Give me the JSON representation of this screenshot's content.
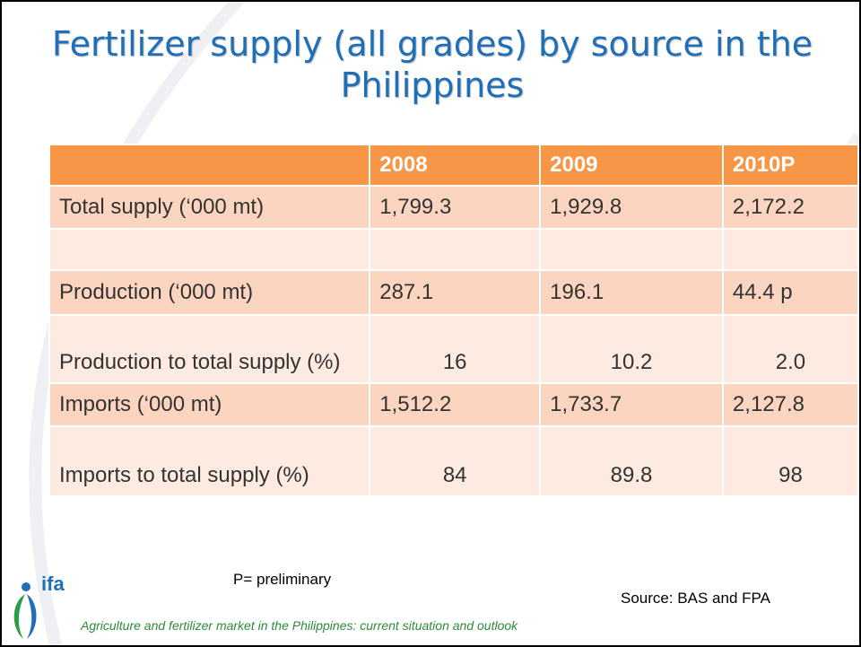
{
  "title": "Fertilizer supply (all grades) by source in the Philippines",
  "table": {
    "header": [
      "2008",
      "2009",
      "2010P"
    ],
    "rows": [
      [
        "Total supply (‘000 mt)",
        "1,799.3",
        "1,929.8",
        "2,172.2"
      ],
      [
        "Production (‘000 mt)",
        "287.1",
        "196.1",
        "44.4 p"
      ],
      [
        "Production to total supply (%)",
        "16",
        "10.2",
        "2.0"
      ],
      [
        "Imports (‘000 mt)",
        "1,512.2",
        "1,733.7",
        "2,127.8"
      ],
      [
        "Imports to total supply (%)",
        "84",
        "89.8",
        "98"
      ]
    ]
  },
  "note": "P=  preliminary",
  "source": "Source:  BAS and FPA",
  "footer": "Agriculture and fertilizer market in the Philippines: current situation and outlook",
  "logo": "ifa"
}
